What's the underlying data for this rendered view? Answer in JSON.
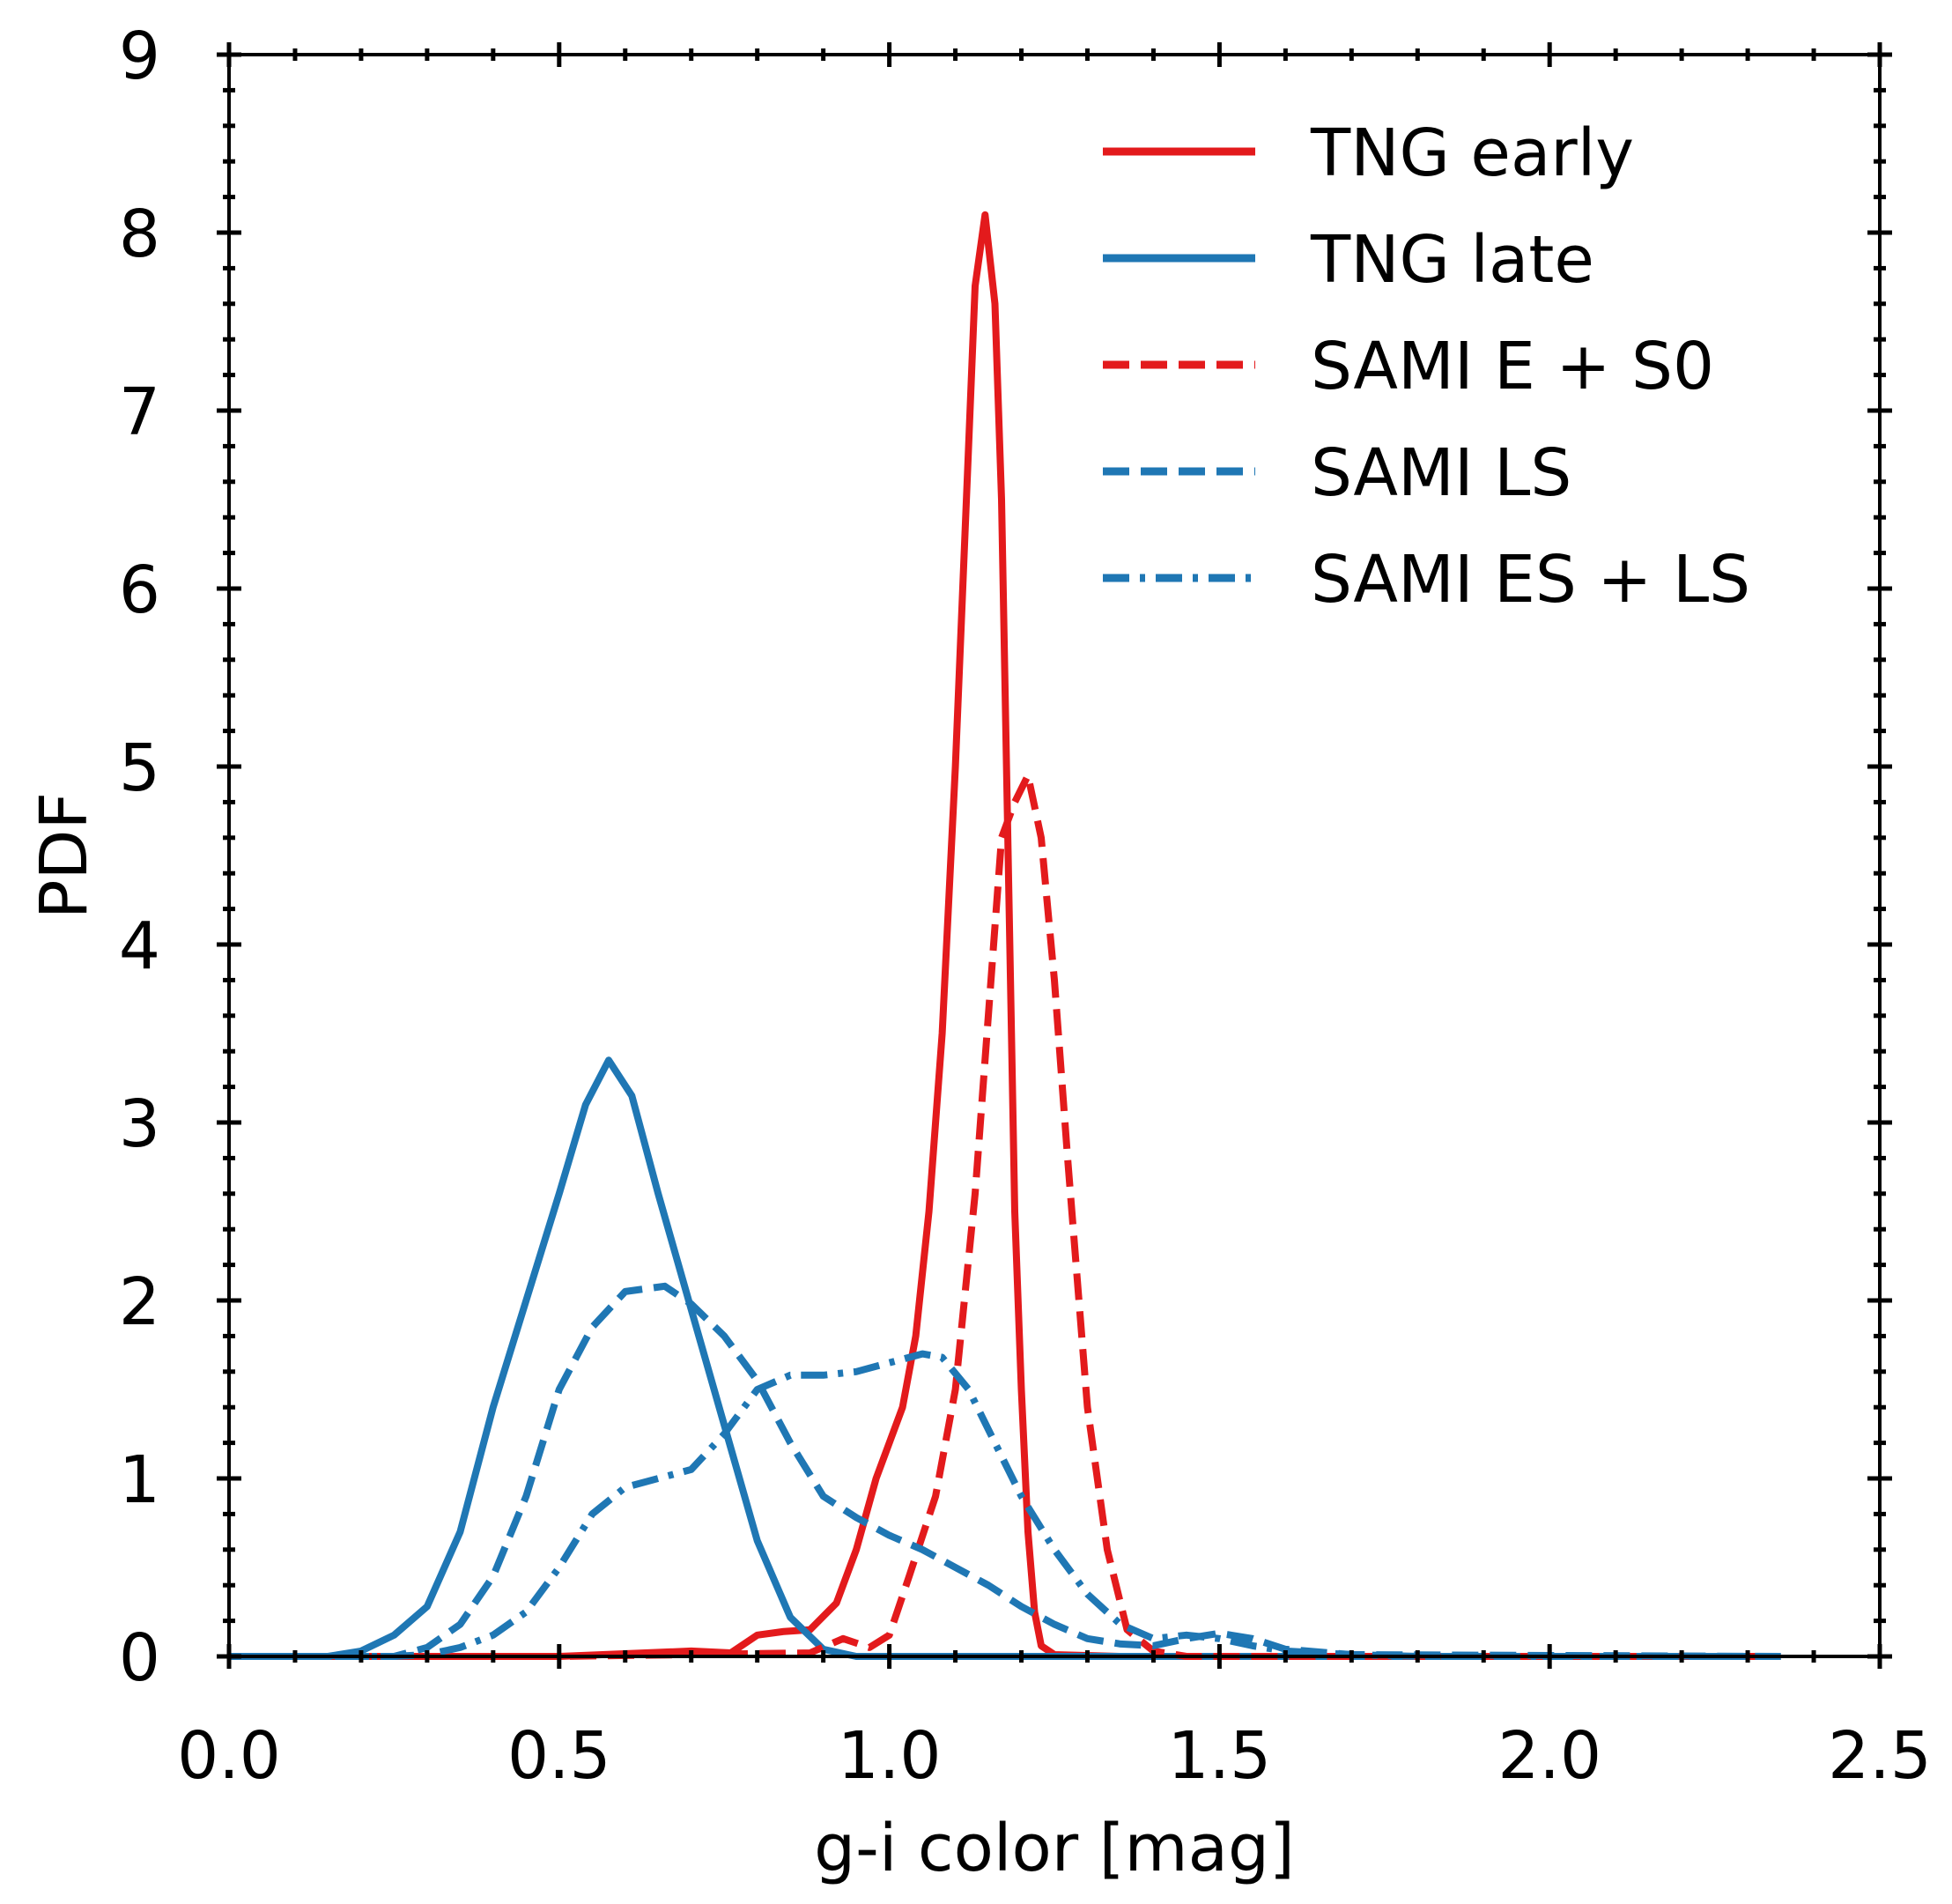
{
  "chart_data": {
    "type": "line",
    "title": "",
    "xlabel": "g-i color [mag]",
    "ylabel": "PDF",
    "xlim": [
      0.0,
      2.5
    ],
    "ylim": [
      0,
      9
    ],
    "x_ticks": [
      0.0,
      0.5,
      1.0,
      1.5,
      2.0,
      2.5
    ],
    "x_tick_labels": [
      "0.0",
      "0.5",
      "1.0",
      "1.5",
      "2.0",
      "2.5"
    ],
    "y_ticks": [
      0,
      1,
      2,
      3,
      4,
      5,
      6,
      7,
      8,
      9
    ],
    "y_tick_labels": [
      "0",
      "1",
      "2",
      "3",
      "4",
      "5",
      "6",
      "7",
      "8",
      "9"
    ],
    "grid": false,
    "legend_position": "top-right",
    "series": [
      {
        "name": "TNG early",
        "color": "#e31a1c",
        "style": "solid",
        "points": [
          [
            0.0,
            0.0
          ],
          [
            0.5,
            0.0
          ],
          [
            0.7,
            0.03
          ],
          [
            0.76,
            0.02
          ],
          [
            0.8,
            0.12
          ],
          [
            0.84,
            0.14
          ],
          [
            0.88,
            0.15
          ],
          [
            0.92,
            0.3
          ],
          [
            0.95,
            0.6
          ],
          [
            0.98,
            1.0
          ],
          [
            1.0,
            1.2
          ],
          [
            1.02,
            1.4
          ],
          [
            1.04,
            1.8
          ],
          [
            1.06,
            2.5
          ],
          [
            1.08,
            3.5
          ],
          [
            1.1,
            5.0
          ],
          [
            1.12,
            6.8
          ],
          [
            1.13,
            7.7
          ],
          [
            1.145,
            8.1
          ],
          [
            1.16,
            7.6
          ],
          [
            1.17,
            6.5
          ],
          [
            1.18,
            4.5
          ],
          [
            1.19,
            2.5
          ],
          [
            1.2,
            1.5
          ],
          [
            1.21,
            0.7
          ],
          [
            1.22,
            0.25
          ],
          [
            1.23,
            0.06
          ],
          [
            1.25,
            0.01
          ],
          [
            1.35,
            0.0
          ],
          [
            2.35,
            0.0
          ]
        ]
      },
      {
        "name": "TNG late",
        "color": "#1f77b4",
        "style": "solid",
        "points": [
          [
            0.0,
            0.0
          ],
          [
            0.15,
            0.0
          ],
          [
            0.2,
            0.03
          ],
          [
            0.25,
            0.12
          ],
          [
            0.3,
            0.28
          ],
          [
            0.35,
            0.7
          ],
          [
            0.4,
            1.4
          ],
          [
            0.45,
            2.0
          ],
          [
            0.5,
            2.6
          ],
          [
            0.54,
            3.1
          ],
          [
            0.575,
            3.35
          ],
          [
            0.61,
            3.15
          ],
          [
            0.65,
            2.6
          ],
          [
            0.7,
            1.95
          ],
          [
            0.75,
            1.3
          ],
          [
            0.8,
            0.65
          ],
          [
            0.85,
            0.22
          ],
          [
            0.9,
            0.04
          ],
          [
            0.95,
            0.0
          ],
          [
            2.35,
            0.0
          ]
        ]
      },
      {
        "name": "SAMI E + S0",
        "color": "#e31a1c",
        "style": "dashed",
        "points": [
          [
            0.0,
            0.0
          ],
          [
            0.5,
            0.0
          ],
          [
            0.88,
            0.02
          ],
          [
            0.93,
            0.1
          ],
          [
            0.97,
            0.05
          ],
          [
            1.0,
            0.12
          ],
          [
            1.03,
            0.45
          ],
          [
            1.07,
            0.9
          ],
          [
            1.1,
            1.5
          ],
          [
            1.13,
            2.6
          ],
          [
            1.15,
            3.6
          ],
          [
            1.17,
            4.6
          ],
          [
            1.19,
            4.8
          ],
          [
            1.21,
            4.95
          ],
          [
            1.23,
            4.6
          ],
          [
            1.25,
            3.8
          ],
          [
            1.27,
            2.8
          ],
          [
            1.3,
            1.4
          ],
          [
            1.33,
            0.6
          ],
          [
            1.36,
            0.15
          ],
          [
            1.4,
            0.03
          ],
          [
            1.45,
            0.0
          ],
          [
            2.35,
            0.0
          ]
        ]
      },
      {
        "name": "SAMI LS",
        "color": "#1f77b4",
        "style": "dashed",
        "points": [
          [
            0.0,
            0.0
          ],
          [
            0.25,
            0.0
          ],
          [
            0.3,
            0.05
          ],
          [
            0.35,
            0.18
          ],
          [
            0.4,
            0.45
          ],
          [
            0.45,
            0.9
          ],
          [
            0.5,
            1.5
          ],
          [
            0.55,
            1.85
          ],
          [
            0.6,
            2.05
          ],
          [
            0.66,
            2.08
          ],
          [
            0.7,
            1.98
          ],
          [
            0.75,
            1.8
          ],
          [
            0.8,
            1.55
          ],
          [
            0.85,
            1.2
          ],
          [
            0.9,
            0.9
          ],
          [
            0.95,
            0.78
          ],
          [
            1.0,
            0.68
          ],
          [
            1.05,
            0.6
          ],
          [
            1.1,
            0.5
          ],
          [
            1.15,
            0.4
          ],
          [
            1.2,
            0.28
          ],
          [
            1.25,
            0.18
          ],
          [
            1.3,
            0.1
          ],
          [
            1.35,
            0.07
          ],
          [
            1.4,
            0.06
          ],
          [
            1.45,
            0.1
          ],
          [
            1.5,
            0.13
          ],
          [
            1.55,
            0.1
          ],
          [
            1.6,
            0.04
          ],
          [
            1.7,
            0.01
          ],
          [
            2.35,
            0.0
          ]
        ]
      },
      {
        "name": "SAMI ES + LS",
        "color": "#1f77b4",
        "style": "dashdot",
        "points": [
          [
            0.0,
            0.0
          ],
          [
            0.25,
            0.0
          ],
          [
            0.3,
            0.01
          ],
          [
            0.35,
            0.05
          ],
          [
            0.4,
            0.12
          ],
          [
            0.45,
            0.25
          ],
          [
            0.5,
            0.5
          ],
          [
            0.55,
            0.8
          ],
          [
            0.6,
            0.95
          ],
          [
            0.65,
            1.0
          ],
          [
            0.7,
            1.05
          ],
          [
            0.75,
            1.25
          ],
          [
            0.8,
            1.5
          ],
          [
            0.85,
            1.58
          ],
          [
            0.9,
            1.58
          ],
          [
            0.95,
            1.6
          ],
          [
            1.0,
            1.65
          ],
          [
            1.05,
            1.7
          ],
          [
            1.08,
            1.68
          ],
          [
            1.12,
            1.5
          ],
          [
            1.16,
            1.2
          ],
          [
            1.2,
            0.9
          ],
          [
            1.25,
            0.6
          ],
          [
            1.3,
            0.35
          ],
          [
            1.35,
            0.18
          ],
          [
            1.4,
            0.1
          ],
          [
            1.45,
            0.12
          ],
          [
            1.5,
            0.1
          ],
          [
            1.55,
            0.06
          ],
          [
            1.6,
            0.03
          ],
          [
            1.7,
            0.01
          ],
          [
            1.8,
            0.0
          ],
          [
            2.35,
            0.0
          ]
        ]
      }
    ]
  }
}
